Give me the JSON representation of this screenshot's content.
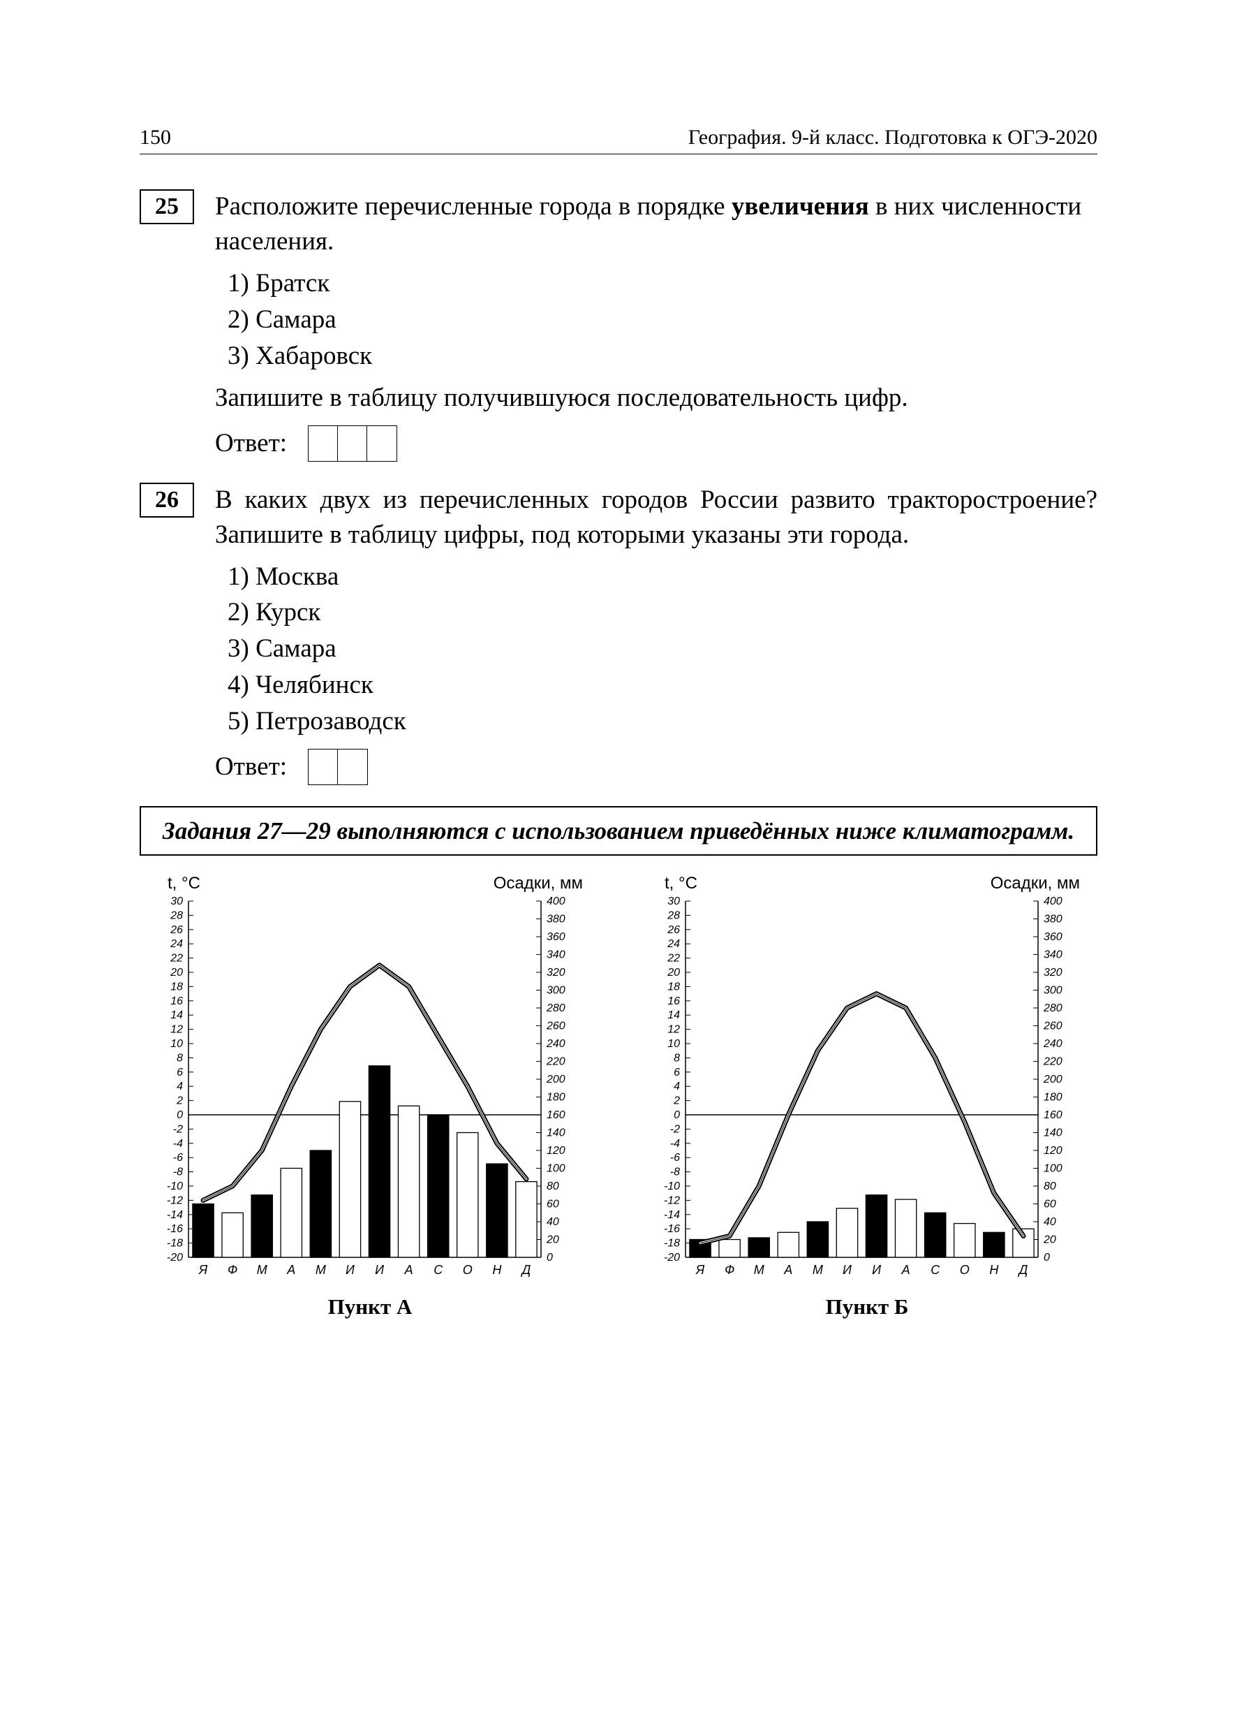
{
  "header": {
    "page_number": "150",
    "running_title": "География. 9-й класс. Подготовка к ОГЭ-2020"
  },
  "q25": {
    "number": "25",
    "prompt_pre": "Расположите перечисленные города в порядке ",
    "prompt_bold": "увеличения",
    "prompt_post": " в них численности населения.",
    "options": [
      "1) Братск",
      "2) Самара",
      "3) Хабаровск"
    ],
    "write_sequence": "Запишите в таблицу получившуюся последовательность цифр.",
    "answer_label": "Ответ:",
    "answer_cells": 3
  },
  "q26": {
    "number": "26",
    "prompt": "В каких двух из перечисленных городов России развито трак­торостроение? Запишите в таблицу цифры, под которыми указаны эти города.",
    "options": [
      "1) Москва",
      "2) Курск",
      "3) Самара",
      "4) Челябинск",
      "5) Петрозаводск"
    ],
    "answer_label": "Ответ:",
    "answer_cells": 2
  },
  "tasks_note": "Задания 27—29 выполняются с использованием приведённых ниже климатограмм.",
  "chart_common": {
    "left_axis_label": "t, °C",
    "right_axis_label": "Осадки, мм",
    "t_ticks": [
      30,
      28,
      26,
      24,
      22,
      20,
      18,
      16,
      14,
      12,
      10,
      8,
      6,
      4,
      2,
      0,
      -2,
      -4,
      -6,
      -8,
      -10,
      -12,
      -14,
      -16,
      -18,
      -20
    ],
    "t_min": -20,
    "t_max": 30,
    "t_step": 2,
    "t_zero_line": 0,
    "p_ticks": [
      400,
      380,
      360,
      340,
      320,
      300,
      280,
      260,
      240,
      220,
      200,
      180,
      160,
      140,
      120,
      100,
      80,
      60,
      40,
      20,
      0
    ],
    "p_min": 0,
    "p_max": 400,
    "p_step": 20,
    "months": [
      "Я",
      "Ф",
      "М",
      "А",
      "М",
      "И",
      "И",
      "А",
      "С",
      "О",
      "Н",
      "Д"
    ],
    "bar_fill_colors": [
      "#000000",
      "#ffffff"
    ],
    "line_color": "#000000",
    "axis_color": "#000000",
    "background_color": "#ffffff",
    "line_width": 2,
    "outline_width": 5,
    "axis_font_size": 16,
    "label_font_size": 24,
    "month_font_size": 18,
    "bar_width": 0.72
  },
  "chartA": {
    "caption": "Пункт А",
    "temperature": [
      -12,
      -10,
      -5,
      4,
      12,
      18,
      21,
      18,
      11,
      4,
      -4,
      -9
    ],
    "precipitation": [
      60,
      50,
      70,
      100,
      120,
      175,
      215,
      170,
      160,
      140,
      105,
      85
    ]
  },
  "chartB": {
    "caption": "Пункт Б",
    "temperature": [
      -18,
      -17,
      -10,
      0,
      9,
      15,
      17,
      15,
      8,
      -1,
      -11,
      -17
    ],
    "precipitation": [
      20,
      20,
      22,
      28,
      40,
      55,
      70,
      65,
      50,
      38,
      28,
      32
    ]
  }
}
